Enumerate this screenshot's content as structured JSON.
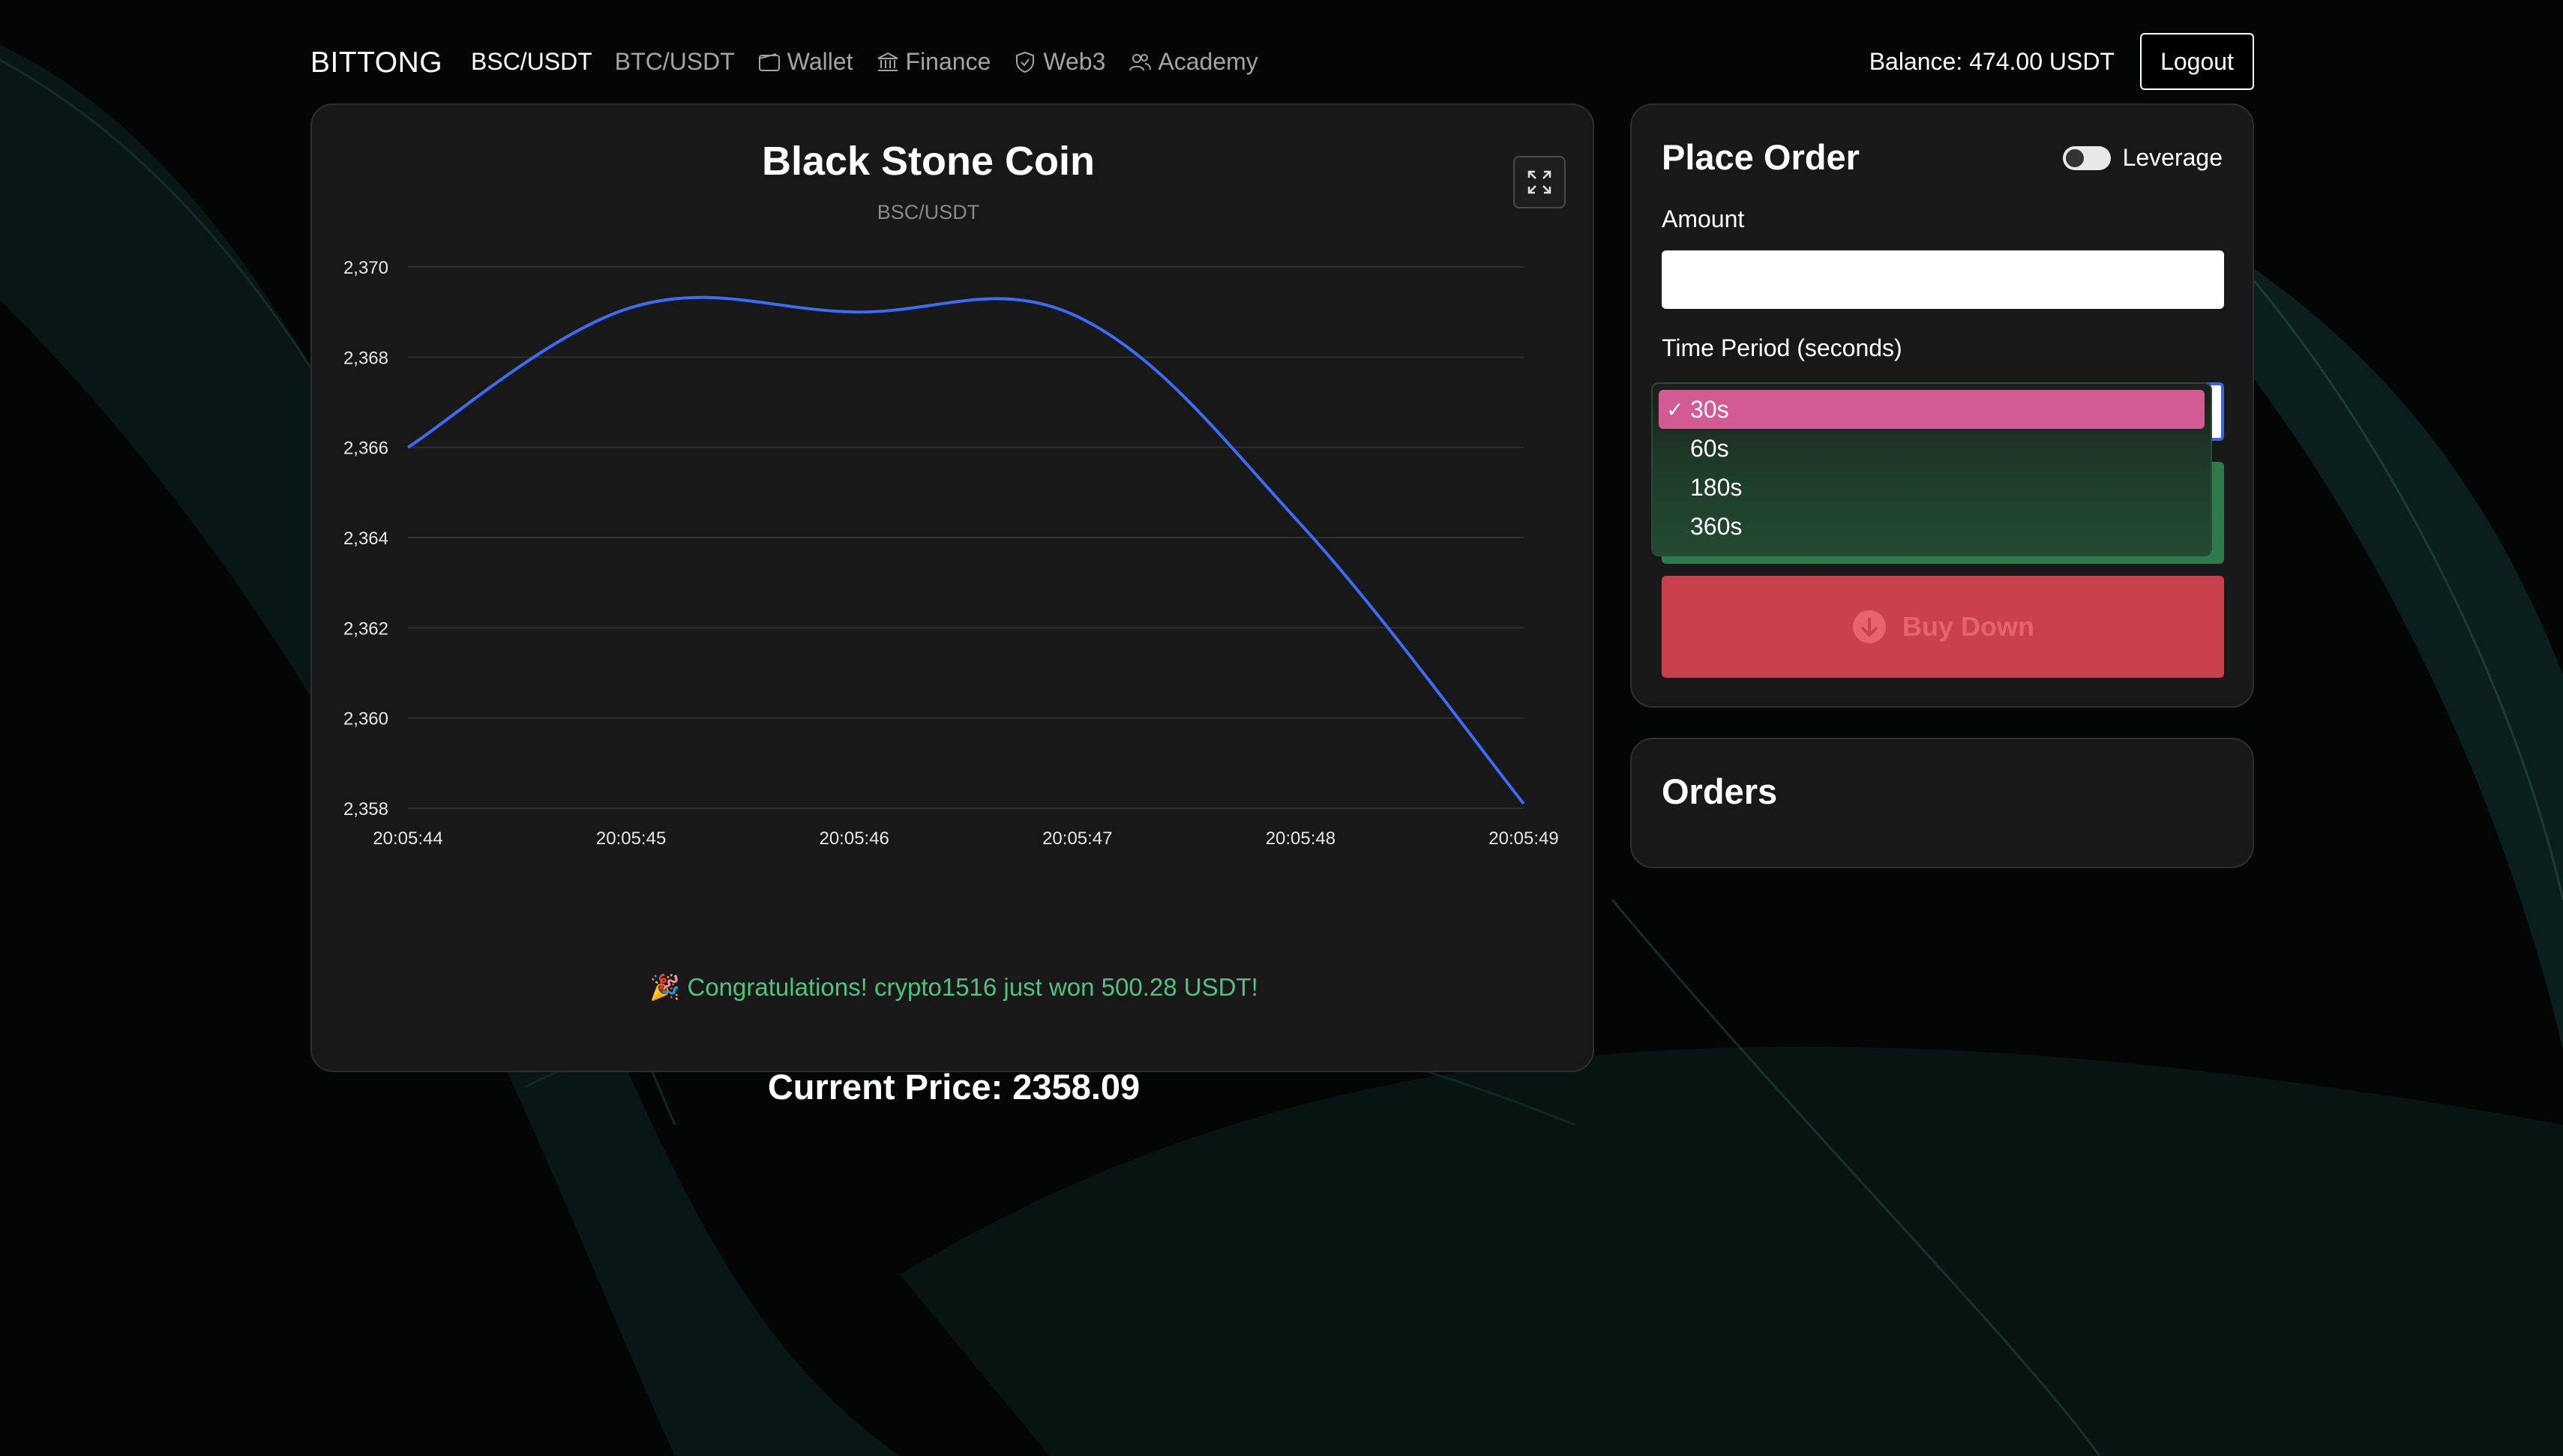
{
  "navbar": {
    "brand": "BITTONG",
    "items": [
      {
        "label": "BSC/USDT",
        "icon": "",
        "active": true
      },
      {
        "label": "BTC/USDT",
        "icon": "",
        "active": false
      },
      {
        "label": "Wallet",
        "icon": "wallet-icon",
        "active": false
      },
      {
        "label": "Finance",
        "icon": "bank-icon",
        "active": false
      },
      {
        "label": "Web3",
        "icon": "shield-icon",
        "active": false
      },
      {
        "label": "Academy",
        "icon": "users-icon",
        "active": false
      }
    ],
    "balance": "Balance: 474.00 USDT",
    "logout_label": "Logout"
  },
  "chart_card": {
    "title": "Black Stone Coin",
    "subtitle": "BSC/USDT",
    "expand_icon": "expand-icon",
    "congrats": "🎉 Congratulations! crypto1516 just won 500.28 USDT!",
    "current_price": "Current Price: 2358.09"
  },
  "chart_data": {
    "type": "line",
    "title": "",
    "xlabel": "",
    "ylabel": "",
    "x": [
      "20:05:44",
      "20:05:45",
      "20:05:46",
      "20:05:47",
      "20:05:48",
      "20:05:49"
    ],
    "series": [
      {
        "values": [
          2366.0,
          2369.1,
          2369.0,
          2368.9,
          2364.3,
          2358.1
        ],
        "color": "#3b6cf6"
      }
    ],
    "ylim": [
      2358,
      2370
    ],
    "yticks": [
      "2,370",
      "2,368",
      "2,366",
      "2,364",
      "2,362",
      "2,360",
      "2,358"
    ],
    "grid": true
  },
  "order_panel": {
    "title": "Place Order",
    "leverage_label": "Leverage",
    "leverage_on": false,
    "amount_label": "Amount",
    "amount_value": "",
    "period_label": "Time Period (seconds)",
    "period_options": [
      "30s",
      "60s",
      "180s",
      "360s"
    ],
    "period_selected": "30s",
    "buy_down_label": "Buy Down",
    "buy_up_color": "#2f7a4a",
    "buy_down_color": "#c8414d"
  },
  "orders_panel": {
    "title": "Orders"
  }
}
